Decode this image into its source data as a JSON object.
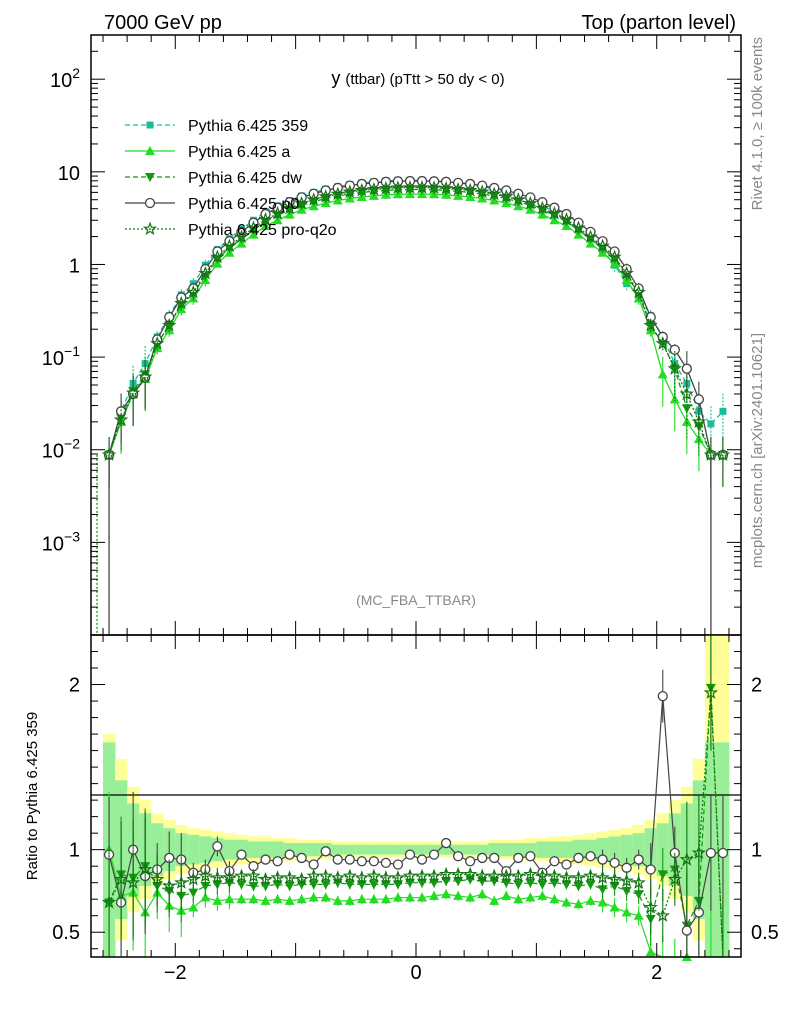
{
  "header": {
    "left": "7000 GeV pp",
    "right": "Top (parton level)"
  },
  "side": {
    "rivet": "Rivet 4.1.0, ≥ 100k events",
    "mcplots": "mcplots.cern.ch [arXiv:2401.10621]"
  },
  "analysis_tag": "(MC_FBA_TTBAR)",
  "chart_data": [
    {
      "type": "line",
      "title_main": "y",
      "title_sub": "(ttbar) (pTtt > 50 dy < 0)",
      "xlabel": "",
      "ylabel": "",
      "yscale": "log",
      "xlim": [
        -2.7,
        2.7
      ],
      "ylim": [
        0.0001,
        300
      ],
      "y_ticks": [
        {
          "v": 100,
          "base": "10",
          "exp": "2"
        },
        {
          "v": 10,
          "base": "10",
          "exp": ""
        },
        {
          "v": 1,
          "base": "1",
          "exp": ""
        },
        {
          "v": 0.1,
          "base": "10",
          "exp": "−1"
        },
        {
          "v": 0.01,
          "base": "10",
          "exp": "−2"
        },
        {
          "v": 0.001,
          "base": "10",
          "exp": "−3"
        }
      ],
      "x": [
        -2.55,
        -2.45,
        -2.35,
        -2.25,
        -2.15,
        -2.05,
        -1.95,
        -1.85,
        -1.75,
        -1.65,
        -1.55,
        -1.45,
        -1.35,
        -1.25,
        -1.15,
        -1.05,
        -0.95,
        -0.85,
        -0.75,
        -0.65,
        -0.55,
        -0.45,
        -0.35,
        -0.25,
        -0.15,
        -0.05,
        0.05,
        0.15,
        0.25,
        0.35,
        0.45,
        0.55,
        0.65,
        0.75,
        0.85,
        0.95,
        1.05,
        1.15,
        1.25,
        1.35,
        1.45,
        1.55,
        1.65,
        1.75,
        1.85,
        1.95,
        2.05,
        2.15,
        2.25,
        2.35,
        2.45,
        2.55
      ],
      "series": [
        {
          "name": "Pythia 6.425 359",
          "color": "#1abc9c",
          "dash": "5,3",
          "marker": "square",
          "values": [
            0.0088,
            0.026,
            0.052,
            0.085,
            0.165,
            0.28,
            0.47,
            0.62,
            0.98,
            1.45,
            1.9,
            2.4,
            3.0,
            3.7,
            4.3,
            4.9,
            5.5,
            6.0,
            6.5,
            6.9,
            7.3,
            7.6,
            7.8,
            8.0,
            8.1,
            8.1,
            8.1,
            8.0,
            7.8,
            7.6,
            7.3,
            6.9,
            6.5,
            6.0,
            5.5,
            4.9,
            4.3,
            3.7,
            3.0,
            2.4,
            1.9,
            1.45,
            0.98,
            0.62,
            0.47,
            0.28,
            0.165,
            0.085,
            0.052,
            0.026,
            0.019,
            0.026
          ]
        },
        {
          "name": "Pythia 6.425 a",
          "color": "#22dd22",
          "dash": "",
          "marker": "triangle-up",
          "values": [
            0.0088,
            0.02,
            0.04,
            0.058,
            0.125,
            0.195,
            0.33,
            0.43,
            0.68,
            1.02,
            1.34,
            1.68,
            2.1,
            2.6,
            3.0,
            3.45,
            3.9,
            4.25,
            4.6,
            4.9,
            5.15,
            5.35,
            5.5,
            5.65,
            5.72,
            5.75,
            5.75,
            5.72,
            5.65,
            5.5,
            5.35,
            5.15,
            4.9,
            4.6,
            4.25,
            3.9,
            3.45,
            3.0,
            2.6,
            2.1,
            1.68,
            1.34,
            1.02,
            0.68,
            0.43,
            0.195,
            0.065,
            0.035,
            0.02,
            0.013,
            0.0088,
            0.0088
          ]
        },
        {
          "name": "Pythia 6.425 dw",
          "color": "#119911",
          "dash": "5,3",
          "marker": "triangle-down",
          "values": [
            0.0088,
            0.022,
            0.043,
            0.065,
            0.14,
            0.22,
            0.37,
            0.48,
            0.77,
            1.15,
            1.5,
            1.9,
            2.35,
            2.9,
            3.4,
            3.85,
            4.35,
            4.75,
            5.15,
            5.5,
            5.75,
            6.0,
            6.15,
            6.3,
            6.4,
            6.45,
            6.45,
            6.4,
            6.3,
            6.15,
            6.0,
            5.75,
            5.5,
            5.15,
            4.75,
            4.35,
            3.85,
            3.4,
            2.9,
            2.35,
            1.9,
            1.5,
            1.15,
            0.77,
            0.48,
            0.22,
            0.14,
            0.075,
            0.028,
            0.018,
            0.0088,
            0.0088
          ]
        },
        {
          "name": "Pythia 6.425 p0",
          "color": "#444444",
          "dash": "",
          "marker": "circle-open",
          "values": [
            0.0088,
            0.026,
            0.04,
            0.06,
            0.155,
            0.27,
            0.44,
            0.55,
            0.89,
            1.38,
            1.78,
            2.25,
            2.82,
            3.5,
            4.1,
            4.7,
            5.3,
            5.8,
            6.3,
            6.7,
            7.1,
            7.4,
            7.6,
            7.8,
            7.9,
            7.95,
            7.95,
            7.9,
            7.8,
            7.6,
            7.4,
            7.1,
            6.7,
            6.3,
            5.8,
            5.3,
            4.7,
            4.1,
            3.5,
            2.82,
            2.25,
            1.78,
            1.38,
            0.89,
            0.55,
            0.27,
            0.165,
            0.12,
            0.075,
            0.035,
            0.0088,
            0.0088
          ]
        },
        {
          "name": "Pythia 6.425 pro-q2o",
          "color": "#117711",
          "dash": "2,2",
          "marker": "star-open",
          "values": [
            0.0088,
            0.021,
            0.041,
            0.061,
            0.14,
            0.22,
            0.38,
            0.5,
            0.8,
            1.2,
            1.58,
            1.98,
            2.48,
            3.05,
            3.55,
            4.05,
            4.55,
            5.0,
            5.4,
            5.75,
            6.05,
            6.3,
            6.45,
            6.6,
            6.7,
            6.75,
            6.75,
            6.7,
            6.6,
            6.45,
            6.3,
            6.05,
            5.75,
            5.4,
            5.0,
            4.55,
            4.05,
            3.55,
            3.05,
            2.48,
            1.98,
            1.58,
            1.2,
            0.8,
            0.5,
            0.22,
            0.14,
            0.075,
            0.04,
            0.02,
            0.0088,
            0.0088
          ]
        }
      ]
    },
    {
      "type": "line",
      "ylabel": "Ratio to Pythia 6.425 359",
      "xlim": [
        -2.7,
        2.7
      ],
      "ylim": [
        0.35,
        2.3
      ],
      "x_ticks": [
        {
          "v": -2,
          "label": "−2"
        },
        {
          "v": 0,
          "label": "0"
        },
        {
          "v": 2,
          "label": "2"
        }
      ],
      "y_ticks": [
        {
          "v": 0.5,
          "label": "0.5"
        },
        {
          "v": 1,
          "label": "1"
        },
        {
          "v": 2,
          "label": "2"
        }
      ],
      "band_outer": [
        1.7,
        1.55,
        1.38,
        1.3,
        1.22,
        1.18,
        1.15,
        1.13,
        1.12,
        1.11,
        1.1,
        1.09,
        1.08,
        1.08,
        1.07,
        1.07,
        1.06,
        1.06,
        1.06,
        1.05,
        1.05,
        1.05,
        1.05,
        1.05,
        1.05,
        1.05,
        1.05,
        1.05,
        1.05,
        1.05,
        1.05,
        1.05,
        1.06,
        1.06,
        1.06,
        1.07,
        1.07,
        1.08,
        1.08,
        1.09,
        1.1,
        1.11,
        1.12,
        1.13,
        1.15,
        1.18,
        1.22,
        1.3,
        1.38,
        1.55,
        2.3,
        2.3
      ],
      "band_inner": [
        1.65,
        1.42,
        1.28,
        1.22,
        1.16,
        1.13,
        1.1,
        1.09,
        1.08,
        1.07,
        1.06,
        1.06,
        1.05,
        1.05,
        1.05,
        1.04,
        1.04,
        1.04,
        1.04,
        1.03,
        1.03,
        1.03,
        1.03,
        1.03,
        1.03,
        1.03,
        1.03,
        1.03,
        1.03,
        1.03,
        1.03,
        1.03,
        1.04,
        1.04,
        1.04,
        1.04,
        1.05,
        1.05,
        1.05,
        1.06,
        1.06,
        1.07,
        1.08,
        1.09,
        1.1,
        1.13,
        1.16,
        1.22,
        1.28,
        1.42,
        1.65,
        1.65
      ],
      "series": [
        {
          "name": "Pythia 6.425 a",
          "color": "#22dd22",
          "values": [
            1.0,
            0.72,
            0.74,
            0.62,
            0.74,
            0.66,
            0.63,
            0.65,
            0.71,
            0.69,
            0.7,
            0.7,
            0.7,
            0.69,
            0.7,
            0.69,
            0.7,
            0.71,
            0.71,
            0.69,
            0.69,
            0.7,
            0.7,
            0.7,
            0.71,
            0.71,
            0.71,
            0.72,
            0.73,
            0.72,
            0.71,
            0.73,
            0.69,
            0.72,
            0.7,
            0.71,
            0.72,
            0.7,
            0.68,
            0.67,
            0.69,
            0.68,
            0.65,
            0.62,
            0.6,
            0.38,
            0.32,
            0.3,
            0.35,
            0.32,
            0.34,
            0.3
          ]
        },
        {
          "name": "Pythia 6.425 dw",
          "color": "#119911",
          "values": [
            0.68,
            0.85,
            0.83,
            0.9,
            0.78,
            0.75,
            0.72,
            0.74,
            0.78,
            0.79,
            0.8,
            0.79,
            0.78,
            0.78,
            0.79,
            0.78,
            0.79,
            0.79,
            0.79,
            0.8,
            0.79,
            0.79,
            0.79,
            0.79,
            0.79,
            0.8,
            0.8,
            0.8,
            0.81,
            0.81,
            0.82,
            0.81,
            0.81,
            0.8,
            0.79,
            0.8,
            0.79,
            0.8,
            0.79,
            0.78,
            0.79,
            0.76,
            0.78,
            0.75,
            0.73,
            0.58,
            0.85,
            0.88,
            0.54,
            0.69,
            1.98,
            0.34
          ]
        },
        {
          "name": "Pythia 6.425 p0",
          "color": "#444444",
          "values": [
            0.97,
            0.68,
            1.0,
            0.84,
            0.88,
            0.95,
            0.94,
            0.86,
            0.88,
            1.02,
            0.87,
            0.97,
            0.9,
            0.94,
            0.93,
            0.97,
            0.95,
            0.91,
            0.99,
            0.94,
            0.94,
            0.93,
            0.93,
            0.92,
            0.91,
            0.97,
            0.94,
            0.97,
            1.04,
            0.96,
            0.93,
            0.95,
            0.95,
            0.87,
            0.95,
            0.96,
            0.86,
            0.93,
            0.91,
            0.95,
            0.96,
            0.94,
            0.92,
            0.89,
            0.94,
            0.88,
            1.93,
            0.98,
            0.51,
            0.62,
            0.98,
            0.98
          ]
        },
        {
          "name": "Pythia 6.425 pro-q2o",
          "color": "#117711",
          "values": [
            0.68,
            0.82,
            0.8,
            0.88,
            0.82,
            0.78,
            0.8,
            0.82,
            0.84,
            0.83,
            0.83,
            0.84,
            0.84,
            0.82,
            0.83,
            0.83,
            0.82,
            0.84,
            0.84,
            0.83,
            0.84,
            0.83,
            0.84,
            0.83,
            0.83,
            0.84,
            0.84,
            0.84,
            0.85,
            0.85,
            0.85,
            0.84,
            0.84,
            0.84,
            0.84,
            0.85,
            0.84,
            0.84,
            0.83,
            0.83,
            0.84,
            0.83,
            0.82,
            0.81,
            0.8,
            0.65,
            0.6,
            0.82,
            0.94,
            0.98,
            1.95,
            0.34
          ]
        }
      ]
    }
  ]
}
